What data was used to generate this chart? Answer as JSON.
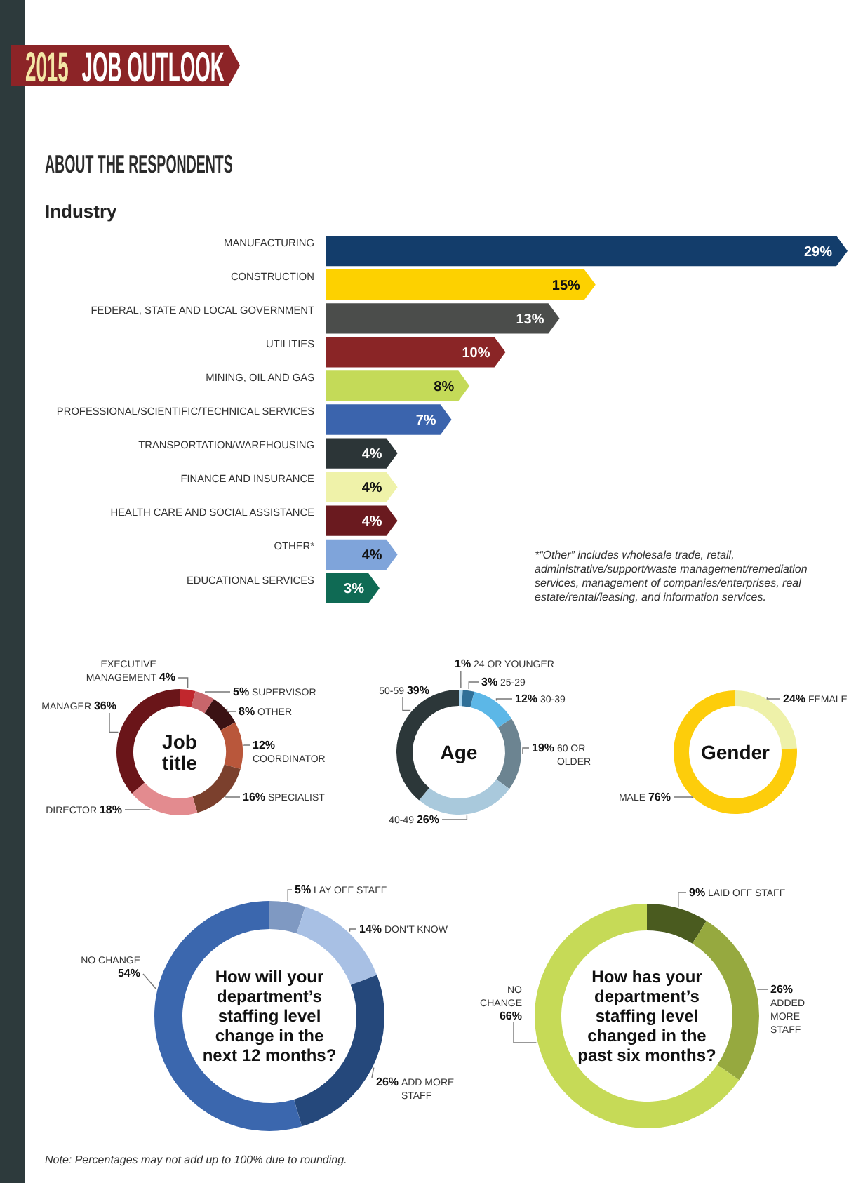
{
  "chart_data": [
    {
      "type": "bar",
      "orientation": "horizontal",
      "title": "2015 JOB OUTLOOK",
      "subtitle": "ABOUT THE RESPONDENTS",
      "ylabel": "Industry",
      "categories": [
        "MANUFACTURING",
        "CONSTRUCTION",
        "FEDERAL, STATE AND LOCAL GOVERNMENT",
        "UTILITIES",
        "MINING, OIL AND GAS",
        "PROFESSIONAL/SCIENTIFIC/TECHNICAL SERVICES",
        "TRANSPORTATION/WAREHOUSING",
        "FINANCE AND INSURANCE",
        "HEALTH CARE AND SOCIAL ASSISTANCE",
        "OTHER*",
        "EDUCATIONAL SERVICES"
      ],
      "values": [
        29,
        15,
        13,
        10,
        8,
        7,
        4,
        4,
        4,
        4,
        3
      ],
      "colors": [
        "#133d6b",
        "#fdd100",
        "#4b4d4b",
        "#8a2526",
        "#c4da58",
        "#3b64ad",
        "#2c3537",
        "#eff2a9",
        "#6a1a1f",
        "#7fa4da",
        "#0f6a54"
      ],
      "value_labels": [
        "29%",
        "15%",
        "13%",
        "10%",
        "8%",
        "7%",
        "4%",
        "4%",
        "4%",
        "4%",
        "3%"
      ],
      "annotations": [
        "*“Other” includes wholesale trade, retail, administrative/support/waste management/remediation services, management of companies/enterprises, real estate/rental/leasing, and information services."
      ]
    },
    {
      "type": "donut",
      "title": "Job title",
      "categories": [
        "EXECUTIVE MANAGEMENT",
        "SUPERVISOR",
        "OTHER",
        "COORDINATOR",
        "SPECIALIST",
        "DIRECTOR",
        "MANAGER"
      ],
      "values": [
        4,
        5,
        8,
        12,
        16,
        18,
        36
      ],
      "colors": [
        "#c1272d",
        "#c8666b",
        "#3b1214",
        "#b9573b",
        "#7b402d",
        "#e38b8f",
        "#6a1519"
      ],
      "value_labels": [
        "4%",
        "5%",
        "8%",
        "12%",
        "16%",
        "18%",
        "36%"
      ]
    },
    {
      "type": "donut",
      "title": "Age",
      "categories": [
        "24 OR YOUNGER",
        "25-29",
        "30-39",
        "60 OR OLDER",
        "40-49",
        "50-59"
      ],
      "values": [
        1,
        3,
        12,
        19,
        26,
        39
      ],
      "colors": [
        "#a9d5ef",
        "#2f6f97",
        "#5cb7e7",
        "#6c8491",
        "#a9c9dc",
        "#2c3739"
      ],
      "value_labels": [
        "1%",
        "3%",
        "12%",
        "19%",
        "26%",
        "39%"
      ]
    },
    {
      "type": "donut",
      "title": "Gender",
      "categories": [
        "FEMALE",
        "MALE"
      ],
      "values": [
        24,
        76
      ],
      "colors": [
        "#eef1a9",
        "#fdcd0b"
      ],
      "value_labels": [
        "24%",
        "76%"
      ]
    },
    {
      "type": "donut",
      "title": "How will your department’s staffing level change in the next 12 months?",
      "categories": [
        "LAY OFF STAFF",
        "DON’T KNOW",
        "ADD MORE STAFF",
        "NO CHANGE"
      ],
      "values": [
        5,
        14,
        26,
        54
      ],
      "colors": [
        "#7f99c2",
        "#a8c0e4",
        "#25487b",
        "#3b67ae"
      ],
      "value_labels": [
        "5%",
        "14%",
        "26%",
        "54%"
      ]
    },
    {
      "type": "donut",
      "title": "How has your department’s staffing level changed in the past six months?",
      "categories": [
        "LAID OFF STAFF",
        "ADDED MORE STAFF",
        "NO CHANGE"
      ],
      "values": [
        9,
        26,
        66
      ],
      "colors": [
        "#4a5b1f",
        "#96a93f",
        "#c6da57"
      ],
      "value_labels": [
        "9%",
        "26%",
        "66%"
      ],
      "annotations": [
        "Note: Percentages may not add up to 100% due to rounding."
      ]
    }
  ]
}
